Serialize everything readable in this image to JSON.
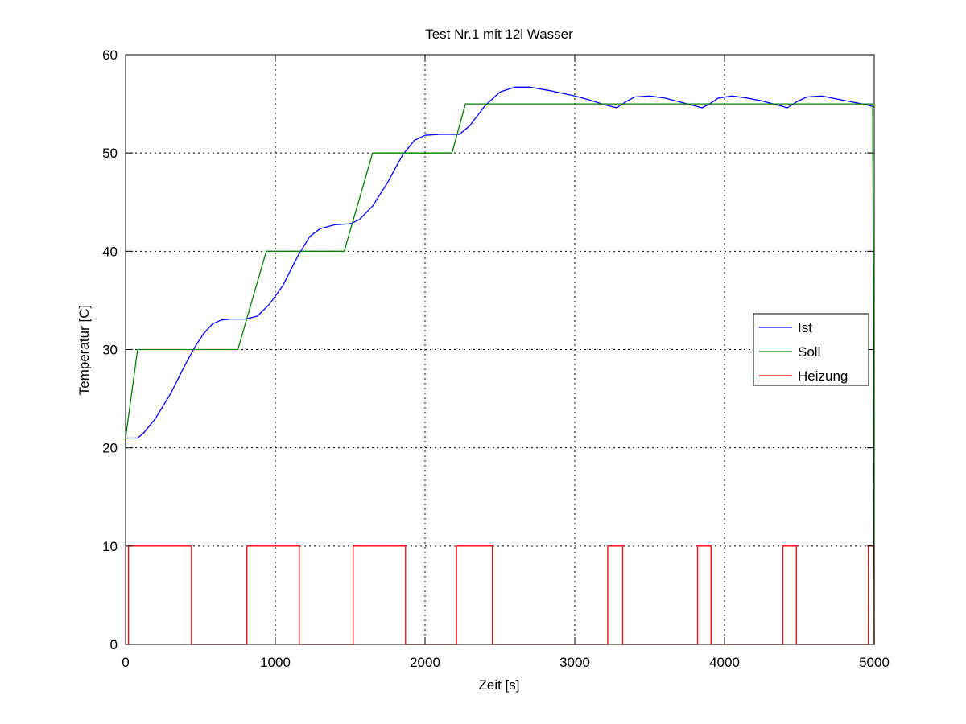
{
  "chart_data": {
    "type": "line",
    "title": "Test Nr.1 mit 12l Wasser",
    "xlabel": "Zeit [s]",
    "ylabel": "Temperatur [C]",
    "xlim": [
      0,
      5000
    ],
    "ylim": [
      0,
      60
    ],
    "xticks": [
      0,
      1000,
      2000,
      3000,
      4000,
      5000
    ],
    "yticks": [
      0,
      10,
      20,
      30,
      40,
      50,
      60
    ],
    "grid": true,
    "legend_position": "right",
    "series": [
      {
        "name": "Ist",
        "color": "#0000ff",
        "points": [
          [
            0,
            21.0
          ],
          [
            80,
            21.0
          ],
          [
            120,
            21.5
          ],
          [
            200,
            23.0
          ],
          [
            300,
            25.5
          ],
          [
            400,
            28.5
          ],
          [
            460,
            30.2
          ],
          [
            520,
            31.6
          ],
          [
            580,
            32.6
          ],
          [
            640,
            33.0
          ],
          [
            700,
            33.1
          ],
          [
            800,
            33.1
          ],
          [
            880,
            33.4
          ],
          [
            960,
            34.6
          ],
          [
            1050,
            36.5
          ],
          [
            1150,
            39.5
          ],
          [
            1230,
            41.5
          ],
          [
            1300,
            42.3
          ],
          [
            1400,
            42.7
          ],
          [
            1500,
            42.8
          ],
          [
            1560,
            43.2
          ],
          [
            1650,
            44.6
          ],
          [
            1750,
            47.0
          ],
          [
            1850,
            49.8
          ],
          [
            1930,
            51.3
          ],
          [
            2000,
            51.8
          ],
          [
            2100,
            51.9
          ],
          [
            2230,
            51.9
          ],
          [
            2300,
            52.8
          ],
          [
            2400,
            54.8
          ],
          [
            2500,
            56.2
          ],
          [
            2600,
            56.7
          ],
          [
            2700,
            56.7
          ],
          [
            2850,
            56.3
          ],
          [
            3000,
            55.8
          ],
          [
            3100,
            55.4
          ],
          [
            3200,
            54.9
          ],
          [
            3280,
            54.6
          ],
          [
            3340,
            55.2
          ],
          [
            3400,
            55.7
          ],
          [
            3500,
            55.8
          ],
          [
            3600,
            55.6
          ],
          [
            3700,
            55.2
          ],
          [
            3800,
            54.8
          ],
          [
            3850,
            54.6
          ],
          [
            3900,
            55.0
          ],
          [
            3960,
            55.6
          ],
          [
            4050,
            55.8
          ],
          [
            4150,
            55.6
          ],
          [
            4250,
            55.3
          ],
          [
            4350,
            54.9
          ],
          [
            4420,
            54.6
          ],
          [
            4480,
            55.2
          ],
          [
            4550,
            55.7
          ],
          [
            4650,
            55.8
          ],
          [
            4750,
            55.5
          ],
          [
            4850,
            55.2
          ],
          [
            4950,
            54.9
          ],
          [
            5000,
            54.7
          ]
        ]
      },
      {
        "name": "Soll",
        "color": "#008000",
        "points": [
          [
            0,
            20.0
          ],
          [
            0,
            21.0
          ],
          [
            80,
            30.0
          ],
          [
            750,
            30.0
          ],
          [
            940,
            40.0
          ],
          [
            1460,
            40.0
          ],
          [
            1650,
            50.0
          ],
          [
            2180,
            50.0
          ],
          [
            2270,
            55.0
          ],
          [
            4990,
            55.0
          ],
          [
            5000,
            0.0
          ]
        ]
      },
      {
        "name": "Heizung",
        "color": "#ff0000",
        "points": [
          [
            0,
            0
          ],
          [
            20,
            0
          ],
          [
            20,
            10
          ],
          [
            440,
            10
          ],
          [
            440,
            0
          ],
          [
            810,
            0
          ],
          [
            810,
            10
          ],
          [
            1160,
            10
          ],
          [
            1160,
            0
          ],
          [
            1520,
            0
          ],
          [
            1520,
            10
          ],
          [
            1870,
            10
          ],
          [
            1870,
            0
          ],
          [
            2210,
            0
          ],
          [
            2210,
            10
          ],
          [
            2450,
            10
          ],
          [
            2450,
            0
          ],
          [
            3220,
            0
          ],
          [
            3220,
            10
          ],
          [
            3320,
            10
          ],
          [
            3320,
            0
          ],
          [
            3820,
            0
          ],
          [
            3820,
            10
          ],
          [
            3910,
            10
          ],
          [
            3910,
            0
          ],
          [
            4390,
            0
          ],
          [
            4390,
            10
          ],
          [
            4480,
            10
          ],
          [
            4480,
            0
          ],
          [
            4960,
            0
          ],
          [
            4960,
            10
          ],
          [
            5000,
            10
          ],
          [
            5000,
            0
          ]
        ]
      }
    ]
  }
}
